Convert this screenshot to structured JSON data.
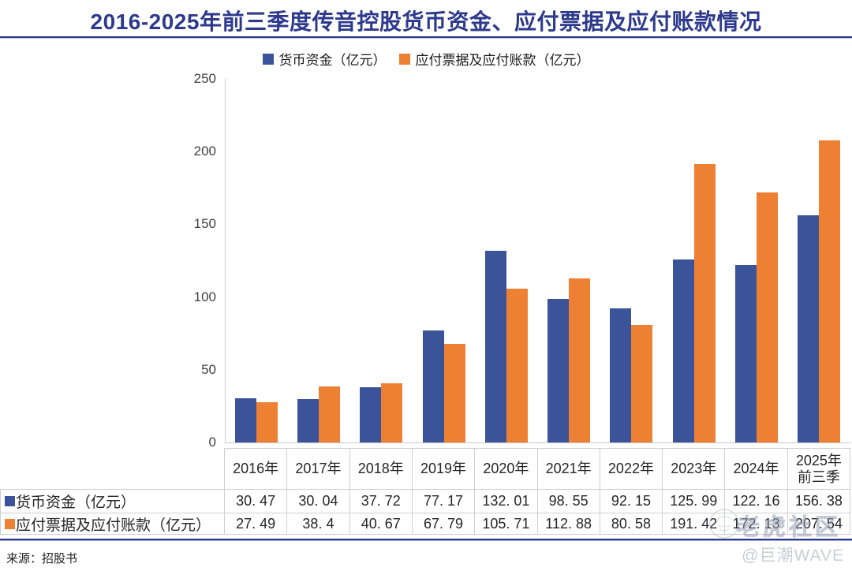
{
  "title": "2016-2025年前三季度传音控股货币资金、应付票据及应付账款情况",
  "legend": [
    {
      "label": "货币资金（亿元）",
      "color": "#3B5398"
    },
    {
      "label": "应付票据及应付账款（亿元）",
      "color": "#EE8033"
    }
  ],
  "chart_data": {
    "type": "bar",
    "title": "2016-2025年前三季度传音控股货币资金、应付票据及应付账款情况",
    "categories": [
      "2016年",
      "2017年",
      "2018年",
      "2019年",
      "2020年",
      "2021年",
      "2022年",
      "2023年",
      "2024年",
      "2025年\n前三季"
    ],
    "series": [
      {
        "name": "货币资金（亿元）",
        "color": "#3B5398",
        "values": [
          30.47,
          30.04,
          37.72,
          77.17,
          132.01,
          98.55,
          92.15,
          125.99,
          122.16,
          156.38
        ]
      },
      {
        "name": "应付票据及应付账款（亿元）",
        "color": "#EE8033",
        "values": [
          27.49,
          38.4,
          40.67,
          67.79,
          105.71,
          112.88,
          80.58,
          191.42,
          172.13,
          207.54
        ]
      }
    ],
    "xlabel": "",
    "ylabel": "",
    "ylim": [
      0,
      250
    ],
    "yticks": [
      0,
      50,
      100,
      150,
      200,
      250
    ],
    "grid": false,
    "legend_position": "top"
  },
  "table": {
    "rows": [
      {
        "label": "货币资金（亿元）",
        "swatch_color": "#3B5398",
        "cells": [
          "30. 47",
          "30. 04",
          "37. 72",
          "77. 17",
          "132. 01",
          "98. 55",
          "92. 15",
          "125. 99",
          "122. 16",
          "156. 38"
        ]
      },
      {
        "label": "应付票据及应付账款（亿元）",
        "swatch_color": "#EE8033",
        "cells": [
          "27. 49",
          "38. 4",
          "40. 67",
          "67. 79",
          "105. 71",
          "112. 88",
          "80. 58",
          "191. 42",
          "172. 13",
          "207. 54"
        ]
      }
    ]
  },
  "footer": {
    "source": "来源：招股书",
    "credit": "@巨潮WAVE"
  },
  "watermark": {
    "text": "老虎社区"
  },
  "colors": {
    "title": "#2D3A8C",
    "bar_blue": "#3B5398",
    "bar_orange": "#EE8033",
    "border": "#cfcfcf"
  }
}
